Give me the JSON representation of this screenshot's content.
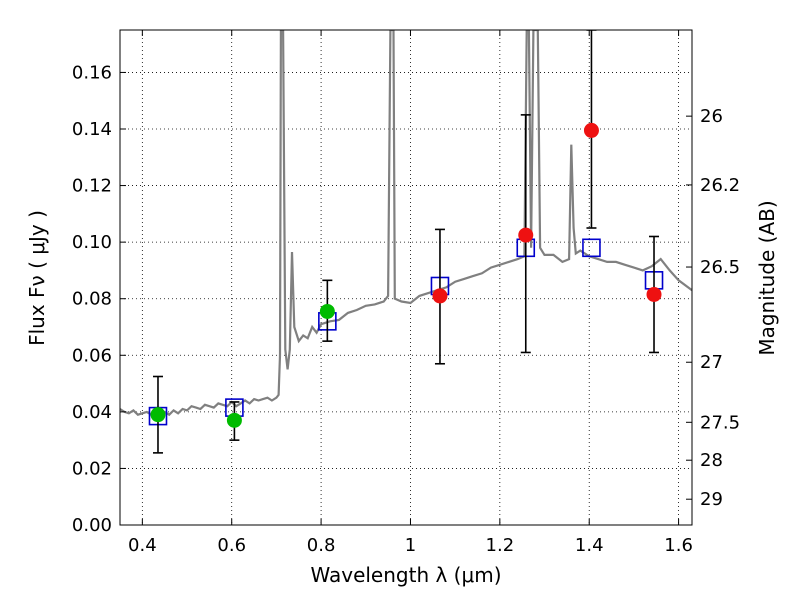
{
  "chart_data": {
    "type": "scatter",
    "xlabel": "Wavelength  λ (μm)",
    "ylabel": "Flux  Fν  ( μJy )",
    "y2label": "Magnitude (AB)",
    "xlim": [
      0.35,
      1.63
    ],
    "ylim": [
      0.0,
      0.175
    ],
    "grid": true,
    "x_ticks": [
      {
        "v": 0.4,
        "label": "0.4"
      },
      {
        "v": 0.6,
        "label": "0.6"
      },
      {
        "v": 0.8,
        "label": "0.8"
      },
      {
        "v": 1.0,
        "label": "1"
      },
      {
        "v": 1.2,
        "label": "1.2"
      },
      {
        "v": 1.4,
        "label": "1.4"
      },
      {
        "v": 1.6,
        "label": "1.6"
      }
    ],
    "y_ticks": [
      {
        "v": 0.0,
        "label": "0.00"
      },
      {
        "v": 0.02,
        "label": "0.02"
      },
      {
        "v": 0.04,
        "label": "0.04"
      },
      {
        "v": 0.06,
        "label": "0.06"
      },
      {
        "v": 0.08,
        "label": "0.08"
      },
      {
        "v": 0.1,
        "label": "0.10"
      },
      {
        "v": 0.12,
        "label": "0.12"
      },
      {
        "v": 0.14,
        "label": "0.14"
      },
      {
        "v": 0.16,
        "label": "0.16"
      }
    ],
    "mag_ticks": [
      {
        "mag": 26,
        "label": "26"
      },
      {
        "mag": 26.2,
        "label": "26.2"
      },
      {
        "mag": 26.5,
        "label": "26.5"
      },
      {
        "mag": 27,
        "label": "27"
      },
      {
        "mag": 27.5,
        "label": "27.5"
      },
      {
        "mag": 28,
        "label": "28"
      },
      {
        "mag": 29,
        "label": "29"
      }
    ],
    "colors": {
      "spectrum": "#808080",
      "model": "#0000cc",
      "optical": "#00bb00",
      "nir": "#ee1111",
      "errorbar": "#000000"
    },
    "model_points": [
      {
        "x": 0.435,
        "y": 0.0385
      },
      {
        "x": 0.606,
        "y": 0.0415
      },
      {
        "x": 0.814,
        "y": 0.072
      },
      {
        "x": 1.066,
        "y": 0.0845
      },
      {
        "x": 1.258,
        "y": 0.098
      },
      {
        "x": 1.405,
        "y": 0.098
      },
      {
        "x": 1.545,
        "y": 0.0865
      }
    ],
    "green_points": [
      {
        "x": 0.435,
        "y": 0.039,
        "yerr_low": 0.0255,
        "yerr_high": 0.0525
      },
      {
        "x": 0.606,
        "y": 0.037,
        "yerr_low": 0.03,
        "yerr_high": 0.0435
      },
      {
        "x": 0.814,
        "y": 0.0755,
        "yerr_low": 0.065,
        "yerr_high": 0.0865
      }
    ],
    "red_points": [
      {
        "x": 1.066,
        "y": 0.081,
        "yerr_low": 0.057,
        "yerr_high": 0.1045
      },
      {
        "x": 1.258,
        "y": 0.1025,
        "yerr_low": 0.061,
        "yerr_high": 0.145
      },
      {
        "x": 1.405,
        "y": 0.1395,
        "yerr_low": 0.105,
        "yerr_high": 0.175
      },
      {
        "x": 1.545,
        "y": 0.0815,
        "yerr_low": 0.061,
        "yerr_high": 0.102
      }
    ],
    "spectrum": [
      [
        0.35,
        0.041
      ],
      [
        0.36,
        0.04
      ],
      [
        0.37,
        0.0395
      ],
      [
        0.38,
        0.0405
      ],
      [
        0.39,
        0.039
      ],
      [
        0.4,
        0.0395
      ],
      [
        0.41,
        0.04
      ],
      [
        0.42,
        0.039
      ],
      [
        0.43,
        0.0405
      ],
      [
        0.44,
        0.0395
      ],
      [
        0.45,
        0.04
      ],
      [
        0.46,
        0.039
      ],
      [
        0.47,
        0.0405
      ],
      [
        0.48,
        0.0395
      ],
      [
        0.49,
        0.041
      ],
      [
        0.5,
        0.0405
      ],
      [
        0.51,
        0.042
      ],
      [
        0.52,
        0.0415
      ],
      [
        0.53,
        0.041
      ],
      [
        0.54,
        0.0425
      ],
      [
        0.55,
        0.042
      ],
      [
        0.56,
        0.0415
      ],
      [
        0.57,
        0.043
      ],
      [
        0.58,
        0.0425
      ],
      [
        0.59,
        0.042
      ],
      [
        0.6,
        0.0435
      ],
      [
        0.61,
        0.042
      ],
      [
        0.62,
        0.043
      ],
      [
        0.63,
        0.044
      ],
      [
        0.64,
        0.043
      ],
      [
        0.65,
        0.0445
      ],
      [
        0.66,
        0.044
      ],
      [
        0.67,
        0.0445
      ],
      [
        0.68,
        0.045
      ],
      [
        0.69,
        0.044
      ],
      [
        0.7,
        0.045
      ],
      [
        0.705,
        0.046
      ],
      [
        0.708,
        0.06
      ],
      [
        0.71,
        0.175
      ],
      [
        0.715,
        0.175
      ],
      [
        0.72,
        0.062
      ],
      [
        0.725,
        0.055
      ],
      [
        0.73,
        0.062
      ],
      [
        0.735,
        0.0965
      ],
      [
        0.74,
        0.07
      ],
      [
        0.75,
        0.065
      ],
      [
        0.76,
        0.067
      ],
      [
        0.77,
        0.066
      ],
      [
        0.78,
        0.07
      ],
      [
        0.79,
        0.068
      ],
      [
        0.8,
        0.071
      ],
      [
        0.82,
        0.072
      ],
      [
        0.84,
        0.0725
      ],
      [
        0.86,
        0.075
      ],
      [
        0.88,
        0.076
      ],
      [
        0.9,
        0.0775
      ],
      [
        0.92,
        0.078
      ],
      [
        0.94,
        0.079
      ],
      [
        0.95,
        0.081
      ],
      [
        0.955,
        0.175
      ],
      [
        0.962,
        0.175
      ],
      [
        0.965,
        0.08
      ],
      [
        0.98,
        0.079
      ],
      [
        1.0,
        0.0785
      ],
      [
        1.02,
        0.081
      ],
      [
        1.04,
        0.082
      ],
      [
        1.06,
        0.083
      ],
      [
        1.08,
        0.084
      ],
      [
        1.1,
        0.086
      ],
      [
        1.12,
        0.087
      ],
      [
        1.14,
        0.088
      ],
      [
        1.16,
        0.089
      ],
      [
        1.18,
        0.091
      ],
      [
        1.2,
        0.092
      ],
      [
        1.22,
        0.093
      ],
      [
        1.24,
        0.094
      ],
      [
        1.255,
        0.095
      ],
      [
        1.26,
        0.175
      ],
      [
        1.265,
        0.175
      ],
      [
        1.27,
        0.098
      ],
      [
        1.275,
        0.175
      ],
      [
        1.285,
        0.175
      ],
      [
        1.29,
        0.098
      ],
      [
        1.3,
        0.0955
      ],
      [
        1.32,
        0.0955
      ],
      [
        1.34,
        0.093
      ],
      [
        1.355,
        0.094
      ],
      [
        1.36,
        0.1345
      ],
      [
        1.365,
        0.105
      ],
      [
        1.37,
        0.096
      ],
      [
        1.38,
        0.097
      ],
      [
        1.4,
        0.095
      ],
      [
        1.42,
        0.094
      ],
      [
        1.44,
        0.093
      ],
      [
        1.46,
        0.093
      ],
      [
        1.48,
        0.092
      ],
      [
        1.5,
        0.091
      ],
      [
        1.52,
        0.09
      ],
      [
        1.54,
        0.0915
      ],
      [
        1.56,
        0.094
      ],
      [
        1.58,
        0.09
      ],
      [
        1.6,
        0.0865
      ],
      [
        1.63,
        0.083
      ]
    ]
  }
}
